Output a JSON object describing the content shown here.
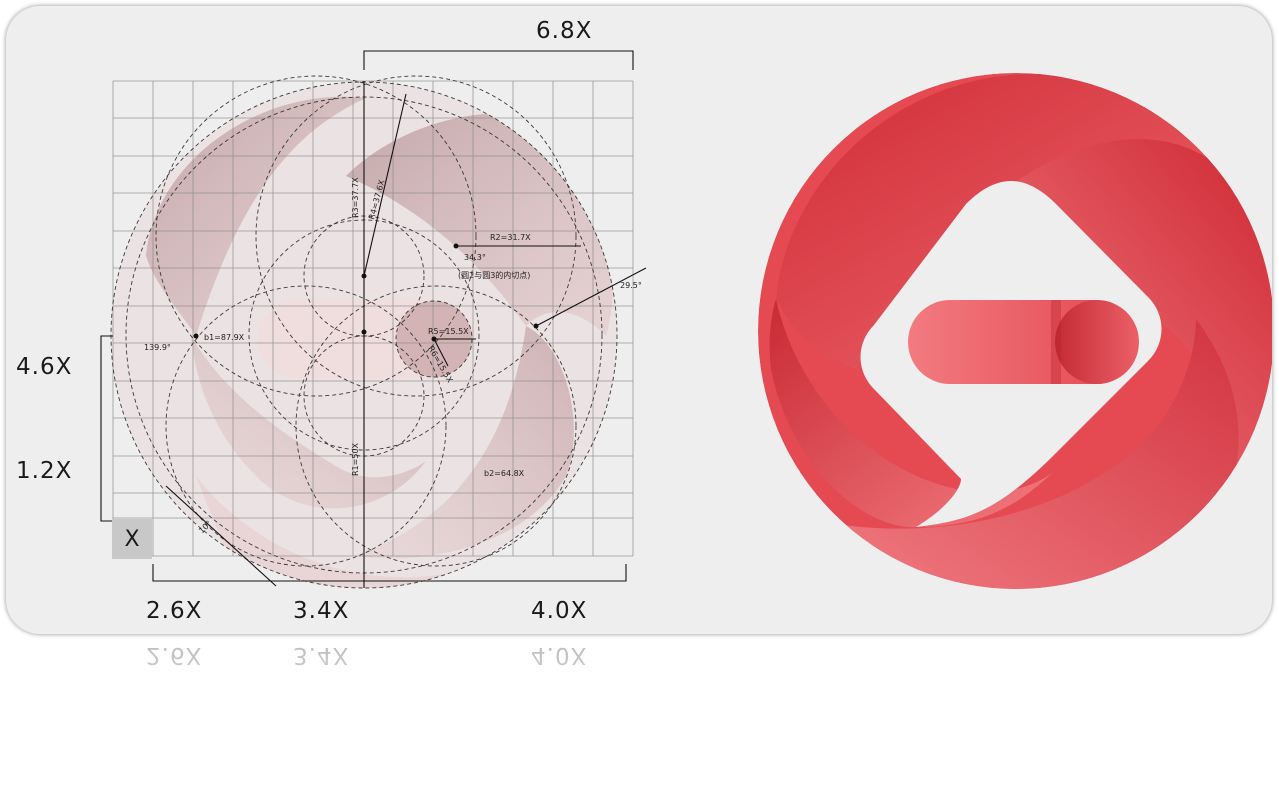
{
  "dimensions": {
    "top_width": "6.8X",
    "left_upper": "4.6X",
    "left_lower": "1.2X",
    "unit_box": "X",
    "bottom_a": "2.6X",
    "bottom_b": "3.4X",
    "bottom_c": "4.0X"
  },
  "annotations": {
    "r1": "R1=50X",
    "r2": "R2=31.7X",
    "r3": "R3=37.7X",
    "r4": "R4=37.6X",
    "r5": "R5=15.5X",
    "r6": "R6=15.5X",
    "b1": "b1=87.9X",
    "b2": "b2=64.8X",
    "angle_a": "34.3°",
    "angle_b": "139.9°",
    "angle_c": "29.5°",
    "angle_d": "10°",
    "tangent_note": "(圆2与圆3的内切点)"
  },
  "colors": {
    "logo_light": "#f27b80",
    "logo_mid": "#e9545c",
    "logo_dark": "#c92a34",
    "construction_fill": "#d9b8ba",
    "construction_dark": "#b99092",
    "grid": "#8a8a8a",
    "card_bg": "#eeeeee"
  }
}
